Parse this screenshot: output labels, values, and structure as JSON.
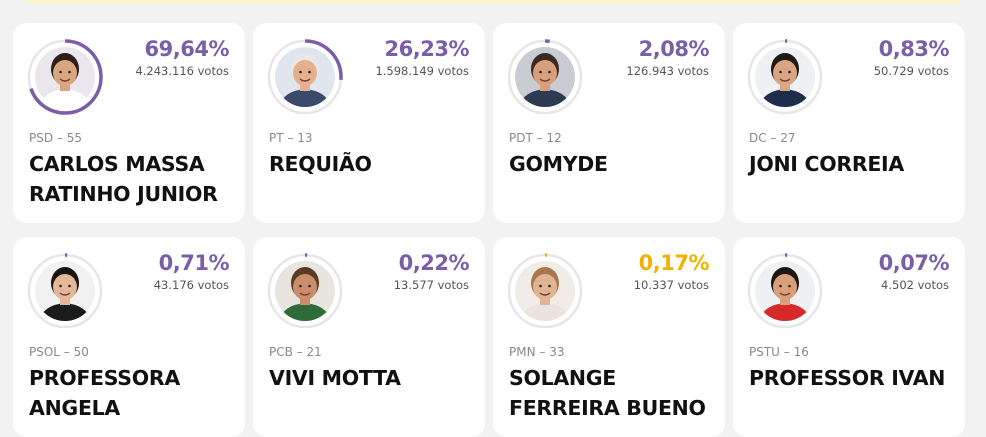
{
  "colors": {
    "leader": "#7b5ea7",
    "highlight": "#f0b400",
    "ring_track": "#e6e6e6"
  },
  "candidates": [
    {
      "percent": "69,64%",
      "votes": "4.243.116 votos",
      "share": 0.6964,
      "party": "PSD – 55",
      "name": "CARLOS MASSA RATINHO JUNIOR",
      "accent": "#7b5ea7",
      "photo_bg": "#e9e6ee",
      "skin": "#d9a67f",
      "hair": "#2b1f18",
      "shirt": "#ffffff"
    },
    {
      "percent": "26,23%",
      "votes": "1.598.149 votos",
      "share": 0.2623,
      "party": "PT – 13",
      "name": "REQUIÃO",
      "accent": "#7b5ea7",
      "photo_bg": "#dfe6ee",
      "skin": "#e4b08e",
      "hair": "#e8e8e8",
      "shirt": "#3a4a6a"
    },
    {
      "percent": "2,08%",
      "votes": "126.943 votos",
      "share": 0.0208,
      "party": "PDT – 12",
      "name": "GOMYDE",
      "accent": "#7b5ea7",
      "photo_bg": "#c9ccd2",
      "skin": "#d7a07c",
      "hair": "#3a2a22",
      "shirt": "#2c3a52"
    },
    {
      "percent": "0,83%",
      "votes": "50.729 votos",
      "share": 0.0083,
      "party": "DC – 27",
      "name": "JONI CORREIA",
      "accent": "#7b5ea7",
      "photo_bg": "#eef0f4",
      "skin": "#d9a583",
      "hair": "#1e1a18",
      "shirt": "#1f2d4d"
    },
    {
      "percent": "0,71%",
      "votes": "43.176 votos",
      "share": 0.0071,
      "party": "PSOL – 50",
      "name": "PROFESSORA ANGELA",
      "accent": "#7b5ea7",
      "photo_bg": "#f1f1f1",
      "skin": "#e3b79a",
      "hair": "#1a1412",
      "shirt": "#1b1b1b"
    },
    {
      "percent": "0,22%",
      "votes": "13.577 votos",
      "share": 0.0022,
      "party": "PCB – 21",
      "name": "VIVI MOTTA",
      "accent": "#7b5ea7",
      "photo_bg": "#e8e4de",
      "skin": "#c98f6a",
      "hair": "#5a3a24",
      "shirt": "#2f6b3a"
    },
    {
      "percent": "0,17%",
      "votes": "10.337 votos",
      "share": 0.0017,
      "party": "PMN – 33",
      "name": "SOLANGE FERREIRA BUENO",
      "accent": "#f0b400",
      "photo_bg": "#f2ece6",
      "skin": "#e0b394",
      "hair": "#a7774f",
      "shirt": "#e9e4df"
    },
    {
      "percent": "0,07%",
      "votes": "4.502 votos",
      "share": 0.0007,
      "party": "PSTU – 16",
      "name": "PROFESSOR IVAN",
      "accent": "#7b5ea7",
      "photo_bg": "#eef0f3",
      "skin": "#d7a07a",
      "hair": "#1c1614",
      "shirt": "#d62a2a"
    }
  ]
}
